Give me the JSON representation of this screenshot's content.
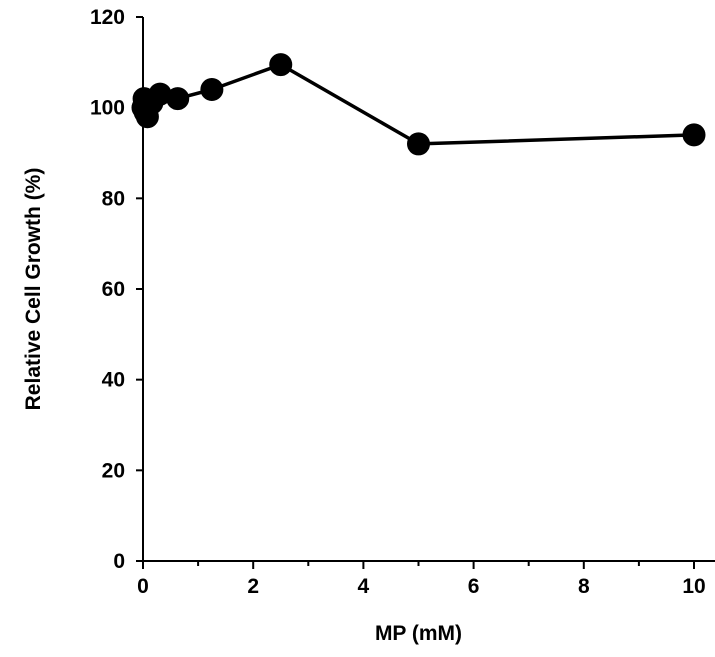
{
  "chart_data": {
    "type": "line",
    "title": "",
    "xlabel": "MP (mM)",
    "ylabel": "Relative Cell Growth (%)",
    "xlim": [
      0,
      10
    ],
    "ylim": [
      0,
      120
    ],
    "x_ticks": [
      0,
      2,
      4,
      6,
      8,
      10
    ],
    "y_ticks": [
      0,
      20,
      40,
      60,
      80,
      100,
      120
    ],
    "x_minor_ticks": [
      1,
      3,
      5,
      7,
      9
    ],
    "grid": false,
    "legend": "none",
    "series": [
      {
        "color": "#000000",
        "marker": "circle",
        "x": [
          0,
          0.02,
          0.04,
          0.08,
          0.16,
          0.31,
          0.63,
          1.25,
          2.5,
          5,
          10
        ],
        "y": [
          100,
          102,
          99,
          98,
          101,
          103,
          102,
          104,
          109.5,
          92,
          94
        ]
      }
    ]
  }
}
